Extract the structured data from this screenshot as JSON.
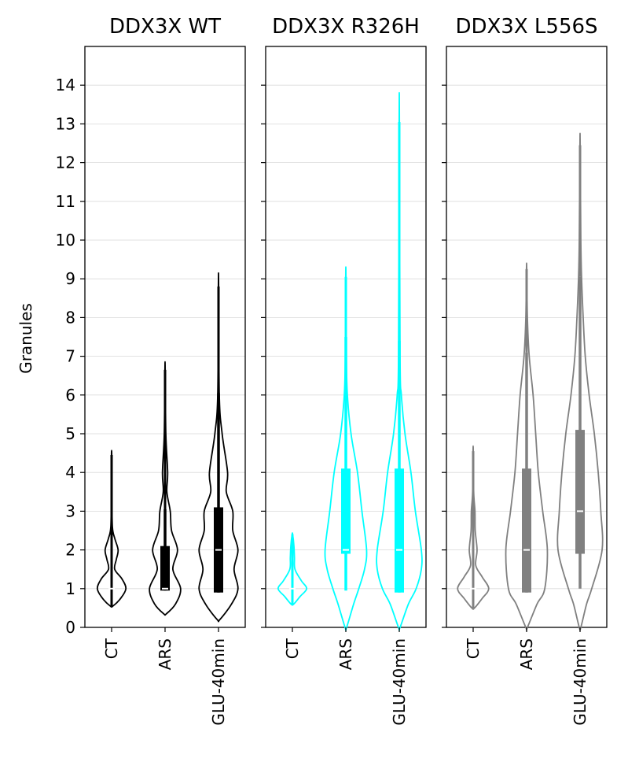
{
  "chart_data": {
    "type": "violin",
    "ylabel": "Granules",
    "ylim": [
      0,
      15
    ],
    "yticks": [
      "0",
      "1",
      "2",
      "3",
      "4",
      "5",
      "6",
      "7",
      "8",
      "9",
      "10",
      "11",
      "12",
      "13",
      "14"
    ],
    "shared_y": true,
    "grid": "horizontal",
    "categories": [
      "CT",
      "ARS",
      "GLU-40min"
    ],
    "panels": [
      {
        "title": "DDX3X WT",
        "color": "#000000",
        "violins": [
          {
            "category": "CT",
            "min": 0.55,
            "max": 4.45,
            "profile": [
              [
                0.55,
                0.05
              ],
              [
                0.75,
                0.35
              ],
              [
                1.0,
                0.55
              ],
              [
                1.25,
                0.4
              ],
              [
                1.5,
                0.12
              ],
              [
                1.75,
                0.18
              ],
              [
                2.0,
                0.25
              ],
              [
                2.3,
                0.12
              ],
              [
                2.6,
                0.03
              ],
              [
                3.5,
                0.01
              ],
              [
                4.45,
                0.005
              ]
            ],
            "box": null,
            "whiskers": null,
            "median": 1.0
          },
          {
            "category": "ARS",
            "min": 0.35,
            "max": 6.65,
            "profile": [
              [
                0.35,
                0.05
              ],
              [
                0.6,
                0.4
              ],
              [
                1.0,
                0.6
              ],
              [
                1.5,
                0.3
              ],
              [
                2.0,
                0.48
              ],
              [
                2.5,
                0.25
              ],
              [
                3.0,
                0.2
              ],
              [
                3.5,
                0.07
              ],
              [
                4.0,
                0.1
              ],
              [
                5.0,
                0.03
              ],
              [
                6.65,
                0.005
              ]
            ],
            "box": [
              0.95,
              2.1
            ],
            "whiskers": [
              0.95,
              3.05
            ],
            "median": 1.0
          },
          {
            "category": "GLU-40min",
            "min": 0.2,
            "max": 8.8,
            "profile": [
              [
                0.2,
                0.05
              ],
              [
                0.6,
                0.5
              ],
              [
                1.0,
                0.75
              ],
              [
                1.5,
                0.6
              ],
              [
                2.0,
                0.75
              ],
              [
                2.5,
                0.55
              ],
              [
                3.0,
                0.55
              ],
              [
                3.5,
                0.3
              ],
              [
                4.0,
                0.35
              ],
              [
                5.0,
                0.14
              ],
              [
                6.0,
                0.03
              ],
              [
                8.8,
                0.005
              ]
            ],
            "box": [
              0.9,
              3.1
            ],
            "whiskers": [
              0.9,
              6.05
            ],
            "median": 2.0
          }
        ]
      },
      {
        "title": "DDX3X R326H",
        "color": "#00FFFF",
        "violins": [
          {
            "category": "CT",
            "min": 0.6,
            "max": 2.4,
            "profile": [
              [
                0.6,
                0.05
              ],
              [
                0.8,
                0.3
              ],
              [
                1.0,
                0.55
              ],
              [
                1.2,
                0.35
              ],
              [
                1.5,
                0.1
              ],
              [
                1.8,
                0.08
              ],
              [
                2.1,
                0.06
              ],
              [
                2.4,
                0.01
              ]
            ],
            "box": null,
            "whiskers": null,
            "median": 1.0
          },
          {
            "category": "ARS",
            "min": 0.0,
            "max": 9.05,
            "profile": [
              [
                0.0,
                0.03
              ],
              [
                0.6,
                0.3
              ],
              [
                1.0,
                0.5
              ],
              [
                1.5,
                0.72
              ],
              [
                2.0,
                0.8
              ],
              [
                3.0,
                0.62
              ],
              [
                4.0,
                0.45
              ],
              [
                5.0,
                0.2
              ],
              [
                6.0,
                0.06
              ],
              [
                7.0,
                0.02
              ],
              [
                9.05,
                0.005
              ]
            ],
            "box": [
              1.9,
              4.1
            ],
            "whiskers": [
              0.95,
              7.5
            ],
            "median": 2.0
          },
          {
            "category": "GLU-40min",
            "min": 0.0,
            "max": 13.05,
            "profile": [
              [
                0.0,
                0.03
              ],
              [
                0.6,
                0.35
              ],
              [
                1.0,
                0.65
              ],
              [
                1.5,
                0.85
              ],
              [
                2.0,
                0.85
              ],
              [
                3.0,
                0.62
              ],
              [
                4.0,
                0.45
              ],
              [
                5.0,
                0.22
              ],
              [
                6.0,
                0.08
              ],
              [
                7.0,
                0.03
              ],
              [
                13.05,
                0.005
              ]
            ],
            "box": [
              0.9,
              4.1
            ],
            "whiskers": [
              0.9,
              7.4
            ],
            "median": 2.0
          }
        ]
      },
      {
        "title": "DDX3X L556S",
        "color": "#808080",
        "violins": [
          {
            "category": "CT",
            "min": 0.5,
            "max": 4.55,
            "profile": [
              [
                0.5,
                0.05
              ],
              [
                0.75,
                0.35
              ],
              [
                1.0,
                0.6
              ],
              [
                1.3,
                0.35
              ],
              [
                1.6,
                0.1
              ],
              [
                2.0,
                0.15
              ],
              [
                2.5,
                0.08
              ],
              [
                3.0,
                0.07
              ],
              [
                3.5,
                0.02
              ],
              [
                4.55,
                0.005
              ]
            ],
            "box": null,
            "whiskers": null,
            "median": 1.0
          },
          {
            "category": "ARS",
            "min": 0.0,
            "max": 9.25,
            "profile": [
              [
                0.0,
                0.03
              ],
              [
                0.6,
                0.4
              ],
              [
                1.0,
                0.7
              ],
              [
                2.0,
                0.8
              ],
              [
                3.0,
                0.62
              ],
              [
                4.0,
                0.45
              ],
              [
                5.0,
                0.35
              ],
              [
                6.0,
                0.25
              ],
              [
                7.0,
                0.1
              ],
              [
                8.0,
                0.03
              ],
              [
                9.25,
                0.005
              ]
            ],
            "box": [
              0.9,
              4.1
            ],
            "whiskers": [
              0.9,
              7.1
            ],
            "median": 2.0
          },
          {
            "category": "GLU-40min",
            "min": 0.0,
            "max": 12.45,
            "profile": [
              [
                0.0,
                0.03
              ],
              [
                0.6,
                0.25
              ],
              [
                1.0,
                0.45
              ],
              [
                2.0,
                0.85
              ],
              [
                3.0,
                0.8
              ],
              [
                4.0,
                0.7
              ],
              [
                5.0,
                0.55
              ],
              [
                6.0,
                0.35
              ],
              [
                7.0,
                0.2
              ],
              [
                8.0,
                0.12
              ],
              [
                9.0,
                0.06
              ],
              [
                10.0,
                0.03
              ],
              [
                12.45,
                0.005
              ]
            ],
            "box": [
              1.9,
              5.1
            ],
            "whiskers": [
              1.0,
              9.05
            ],
            "median": 3.0
          }
        ]
      }
    ]
  }
}
